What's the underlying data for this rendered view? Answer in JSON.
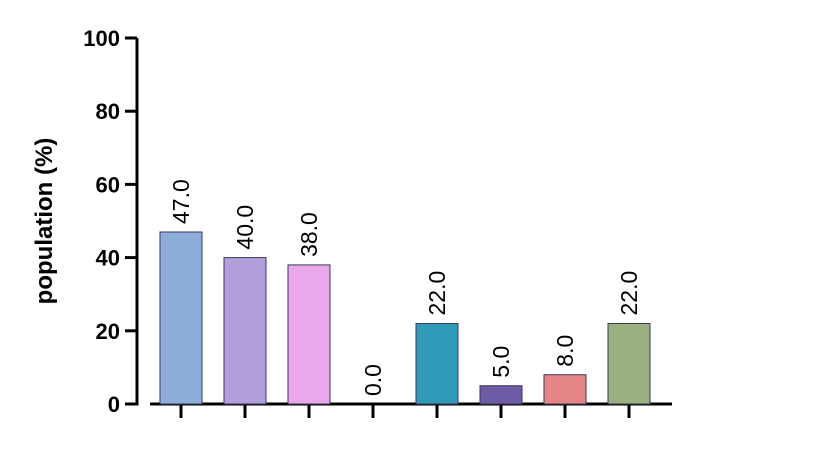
{
  "chart_data": {
    "type": "bar",
    "title": "",
    "xlabel": "",
    "ylabel": "population (%)",
    "ylim": [
      0,
      100
    ],
    "yticks": [
      0,
      20,
      40,
      60,
      80,
      100
    ],
    "grid": false,
    "values": [
      47.0,
      40.0,
      38.0,
      0.0,
      22.0,
      5.0,
      8.0,
      22.0
    ],
    "data_labels": [
      "47.0",
      "40.0",
      "38.0",
      "0.0",
      "22.0",
      "5.0",
      "8.0",
      "22.0"
    ],
    "colors": [
      "#8daedb",
      "#b19fdb",
      "#eaa8ea",
      "#ffffff",
      "#2f9ab7",
      "#6e5ba5",
      "#e58585",
      "#9bb07f"
    ]
  }
}
